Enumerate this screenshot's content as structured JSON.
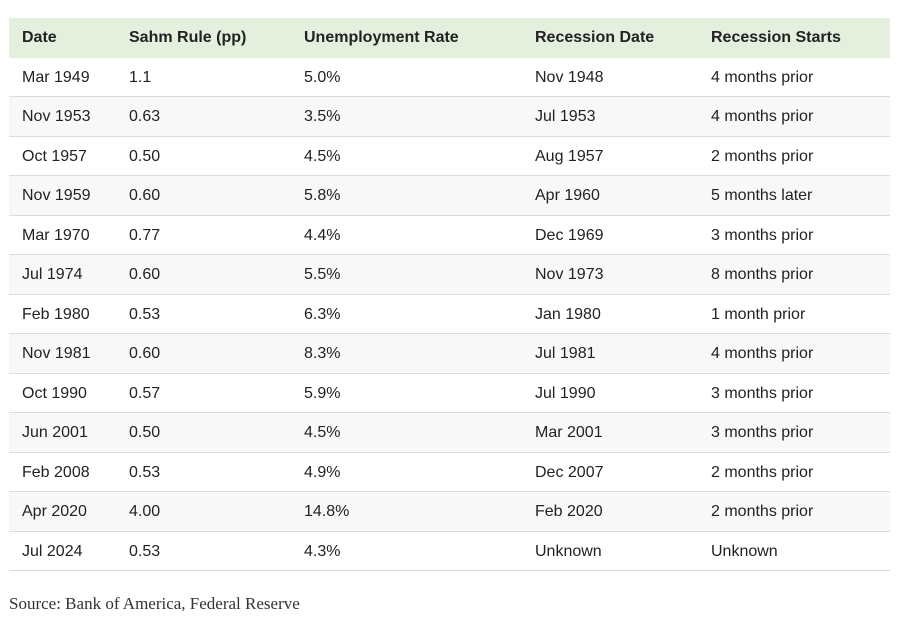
{
  "table": {
    "header": [
      "Date",
      "Sahm Rule (pp)",
      "Unemployment Rate",
      "Recession Date",
      "Recession Starts"
    ],
    "rows": [
      [
        "Mar 1949",
        "1.1",
        "5.0%",
        "Nov 1948",
        "4 months prior"
      ],
      [
        "Nov 1953",
        "0.63",
        "3.5%",
        "Jul 1953",
        "4 months prior"
      ],
      [
        "Oct 1957",
        "0.50",
        "4.5%",
        "Aug 1957",
        "2 months prior"
      ],
      [
        "Nov 1959",
        "0.60",
        "5.8%",
        "Apr 1960",
        "5 months later"
      ],
      [
        "Mar 1970",
        "0.77",
        "4.4%",
        "Dec 1969",
        "3 months prior"
      ],
      [
        "Jul 1974",
        "0.60",
        "5.5%",
        "Nov 1973",
        "8 months prior"
      ],
      [
        "Feb 1980",
        "0.53",
        "6.3%",
        "Jan 1980",
        "1 month prior"
      ],
      [
        "Nov 1981",
        "0.60",
        "8.3%",
        "Jul 1981",
        "4 months prior"
      ],
      [
        "Oct 1990",
        "0.57",
        "5.9%",
        "Jul 1990",
        "3 months prior"
      ],
      [
        "Jun 2001",
        "0.50",
        "4.5%",
        "Mar 2001",
        "3 months prior"
      ],
      [
        "Feb 2008",
        "0.53",
        "4.9%",
        "Dec 2007",
        "2 months prior"
      ],
      [
        "Apr 2020",
        "4.00",
        "14.8%",
        "Feb 2020",
        "2 months prior"
      ],
      [
        "Jul 2024",
        "0.53",
        "4.3%",
        "Unknown",
        "Unknown"
      ]
    ]
  },
  "source": "Source: Bank of America, Federal Reserve"
}
